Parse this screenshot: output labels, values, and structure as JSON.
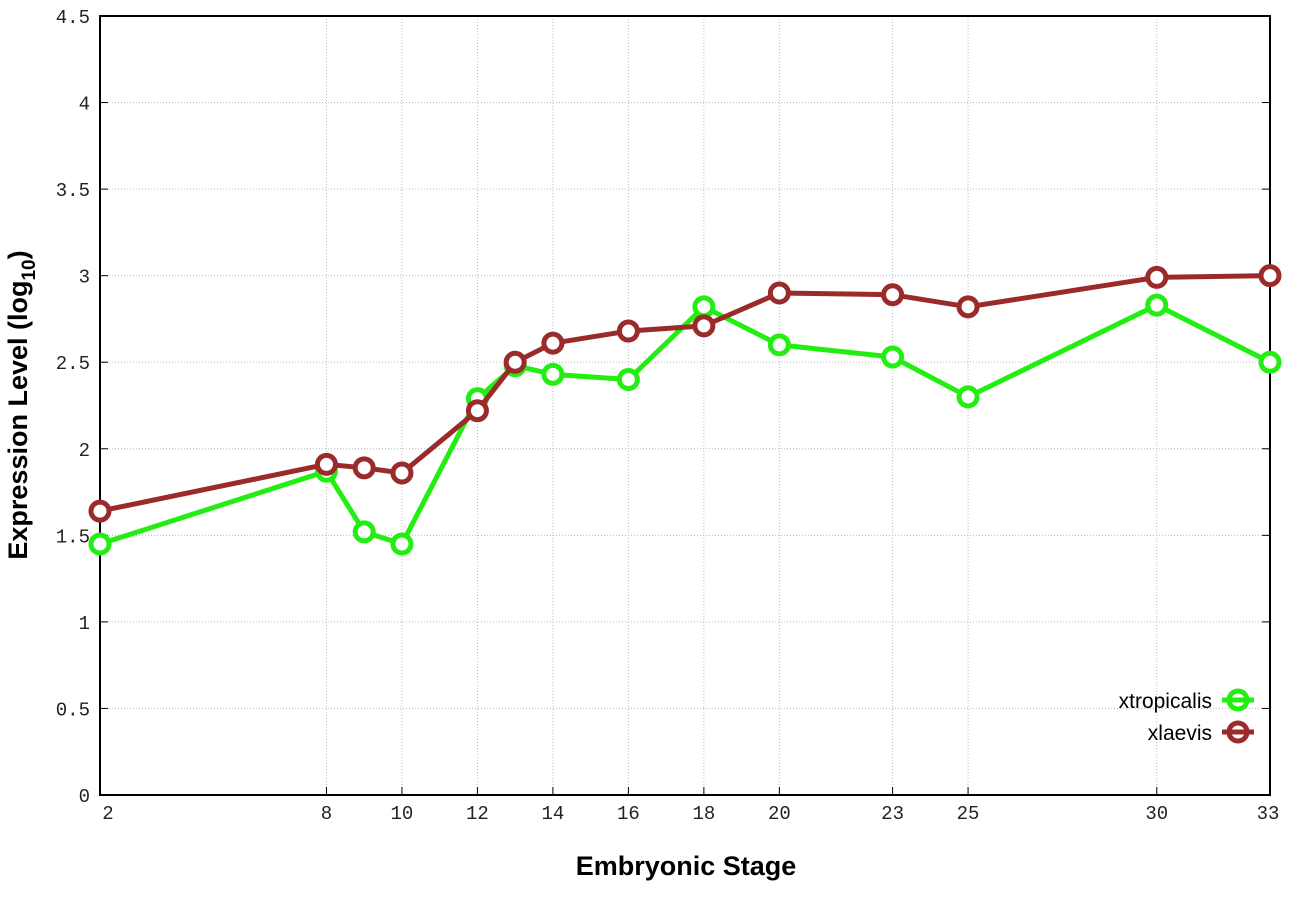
{
  "chart_data": {
    "type": "line",
    "title": "",
    "xlabel": "Embryonic Stage",
    "ylabel_main": "Expression Level (log",
    "ylabel_sub": "10",
    "ylabel_close": ")",
    "x": [
      2,
      8,
      9,
      10,
      12,
      13,
      14,
      16,
      18,
      20,
      23,
      25,
      30,
      33
    ],
    "xticks": [
      2,
      8,
      10,
      12,
      14,
      16,
      18,
      20,
      23,
      25,
      30,
      33
    ],
    "yticks": [
      "0",
      "0.5",
      "1",
      "1.5",
      "2",
      "2.5",
      "3",
      "3.5",
      "4",
      "4.5"
    ],
    "xlim": [
      2,
      33
    ],
    "ylim": [
      0,
      4.5
    ],
    "grid": true,
    "legend_position": "bottom-right",
    "series": [
      {
        "name": "xtropicalis",
        "color": "#22ee11",
        "values": [
          1.45,
          1.87,
          1.52,
          1.45,
          2.29,
          2.48,
          2.43,
          2.4,
          2.82,
          2.6,
          2.53,
          2.3,
          2.83,
          2.5
        ]
      },
      {
        "name": "xlaevis",
        "color": "#9b2a2a",
        "values": [
          1.64,
          1.91,
          1.89,
          1.86,
          2.22,
          2.5,
          2.61,
          2.68,
          2.71,
          2.9,
          2.89,
          2.82,
          2.99,
          3.0
        ]
      }
    ]
  }
}
